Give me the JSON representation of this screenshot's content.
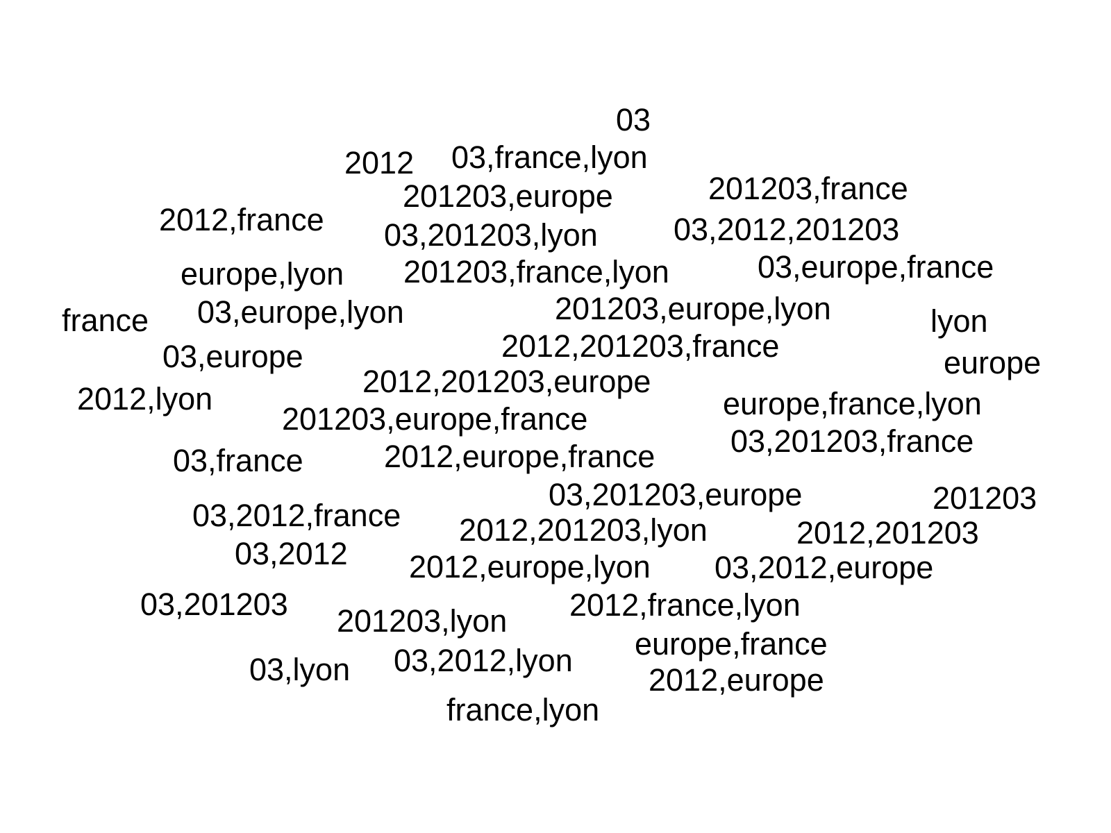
{
  "words": [
    "03",
    "2012",
    "03,france,lyon",
    "201203,france",
    "201203,europe",
    "2012,france",
    "03,201203,lyon",
    "03,2012,201203",
    "europe,lyon",
    "201203,france,lyon",
    "03,europe,france",
    "france",
    "03,europe,lyon",
    "201203,europe,lyon",
    "lyon",
    "03,europe",
    "2012,201203,france",
    "europe",
    "2012,lyon",
    "2012,201203,europe",
    "europe,france,lyon",
    "201203,europe,france",
    "03,201203,france",
    "03,france",
    "2012,europe,france",
    "03,201203,europe",
    "201203",
    "03,2012,france",
    "2012,201203,lyon",
    "2012,201203",
    "03,2012",
    "2012,europe,lyon",
    "03,2012,europe",
    "03,201203",
    "2012,france,lyon",
    "201203,lyon",
    "europe,france",
    "03,lyon",
    "03,2012,lyon",
    "2012,europe",
    "france,lyon"
  ]
}
